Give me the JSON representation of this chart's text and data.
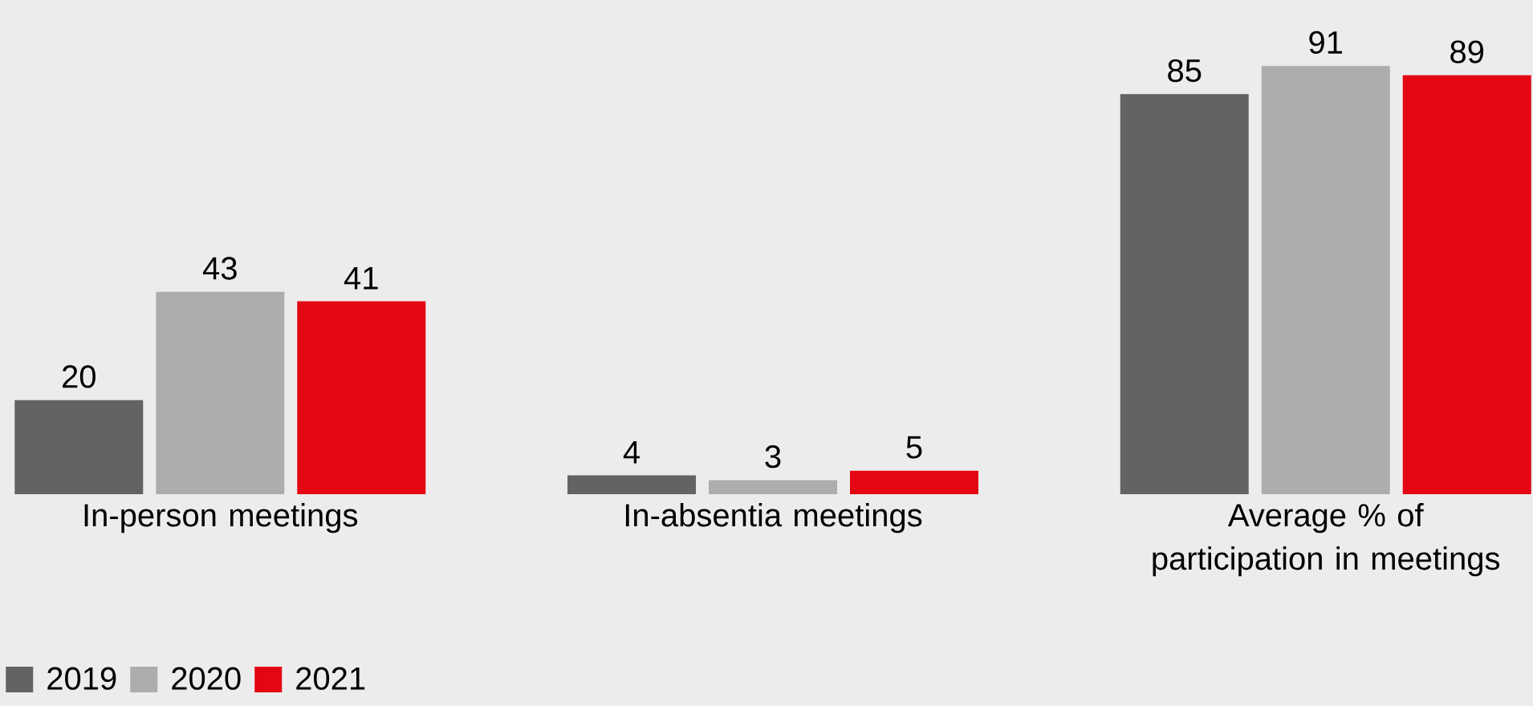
{
  "chart_data": {
    "type": "bar",
    "categories": [
      "In-person meetings",
      "In-absentia meetings",
      "Average % of participation in meetings"
    ],
    "series": [
      {
        "name": "2019",
        "color": "#656263",
        "values": [
          20,
          4,
          85
        ]
      },
      {
        "name": "2020",
        "color": "#acadac",
        "values": [
          43,
          3,
          91
        ]
      },
      {
        "name": "2021",
        "color": "#e30613",
        "values": [
          41,
          5,
          89
        ]
      }
    ],
    "ylim": [
      0,
      105
    ],
    "data_labels": true,
    "legend": "bottom left"
  }
}
